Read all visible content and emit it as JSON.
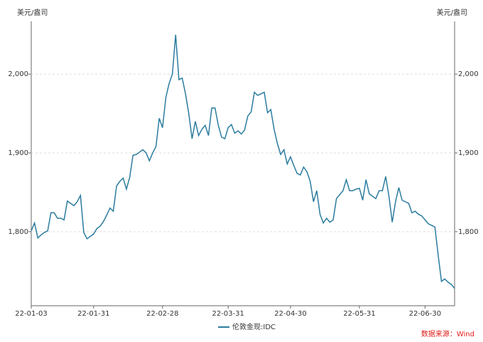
{
  "chart_data": {
    "type": "line",
    "y_unit_label": "美元/盎司",
    "y2_unit_label": "美元/盎司",
    "source": "数据来源：Wind",
    "categories": [
      "22-01-03",
      null,
      null,
      null,
      null,
      null,
      null,
      null,
      null,
      null,
      null,
      null,
      null,
      null,
      null,
      null,
      null,
      null,
      null,
      "22-01-31",
      null,
      null,
      null,
      null,
      null,
      null,
      null,
      null,
      null,
      null,
      null,
      null,
      null,
      null,
      null,
      null,
      null,
      null,
      null,
      null,
      "22-02-28",
      null,
      null,
      null,
      null,
      null,
      null,
      null,
      null,
      null,
      null,
      null,
      null,
      null,
      null,
      null,
      null,
      null,
      null,
      null,
      "22-03-31",
      null,
      null,
      null,
      null,
      null,
      null,
      null,
      null,
      null,
      null,
      null,
      null,
      null,
      null,
      null,
      null,
      null,
      null,
      "22-04-30",
      null,
      null,
      null,
      null,
      null,
      null,
      null,
      null,
      null,
      null,
      null,
      null,
      null,
      null,
      null,
      null,
      null,
      null,
      null,
      null,
      "22-05-31",
      null,
      null,
      null,
      null,
      null,
      null,
      null,
      null,
      null,
      null,
      null,
      null,
      null,
      null,
      null,
      null,
      null,
      null,
      null,
      "22-06-30",
      null,
      null,
      null,
      null,
      null,
      null,
      null,
      null,
      null
    ],
    "series": [
      {
        "name": "伦敦金现:IDC",
        "color": "#2b7c9f",
        "values": [
          1801,
          1811,
          1792,
          1796,
          1799,
          1801,
          1824,
          1824,
          1817,
          1817,
          1815,
          1839,
          1836,
          1833,
          1838,
          1846,
          1799,
          1791,
          1794,
          1797,
          1804,
          1807,
          1813,
          1821,
          1830,
          1826,
          1858,
          1864,
          1868,
          1854,
          1869,
          1897,
          1898,
          1901,
          1904,
          1900,
          1890,
          1900,
          1908,
          1944,
          1932,
          1970,
          1988,
          2000,
          2050,
          1993,
          1995,
          1975,
          1950,
          1918,
          1940,
          1922,
          1930,
          1935,
          1922,
          1957,
          1957,
          1935,
          1920,
          1918,
          1932,
          1936,
          1925,
          1928,
          1924,
          1929,
          1947,
          1952,
          1977,
          1973,
          1975,
          1977,
          1951,
          1955,
          1930,
          1912,
          1898,
          1904,
          1886,
          1895,
          1884,
          1874,
          1872,
          1882,
          1876,
          1864,
          1838,
          1852,
          1822,
          1811,
          1817,
          1812,
          1815,
          1842,
          1847,
          1852,
          1866,
          1852,
          1852,
          1854,
          1855,
          1840,
          1866,
          1848,
          1845,
          1842,
          1852,
          1852,
          1870,
          1845,
          1812,
          1838,
          1856,
          1840,
          1838,
          1836,
          1824,
          1826,
          1822,
          1820,
          1815,
          1810,
          1808,
          1806,
          1770,
          1737,
          1740,
          1736,
          1733,
          1728
        ]
      }
    ],
    "ylim": [
      1706,
      2067
    ],
    "yticks": [
      {
        "value": 1800,
        "label": "1,800"
      },
      {
        "value": 1900,
        "label": "1,900"
      },
      {
        "value": 2000,
        "label": "2,000"
      }
    ],
    "y2lim": [
      1706,
      2067
    ],
    "y2ticks": [
      {
        "value": 1800,
        "label": "1,800"
      },
      {
        "value": 1900,
        "label": "1,900"
      },
      {
        "value": 2000,
        "label": "2,000"
      }
    ],
    "grid": true,
    "legend": "bottom"
  }
}
